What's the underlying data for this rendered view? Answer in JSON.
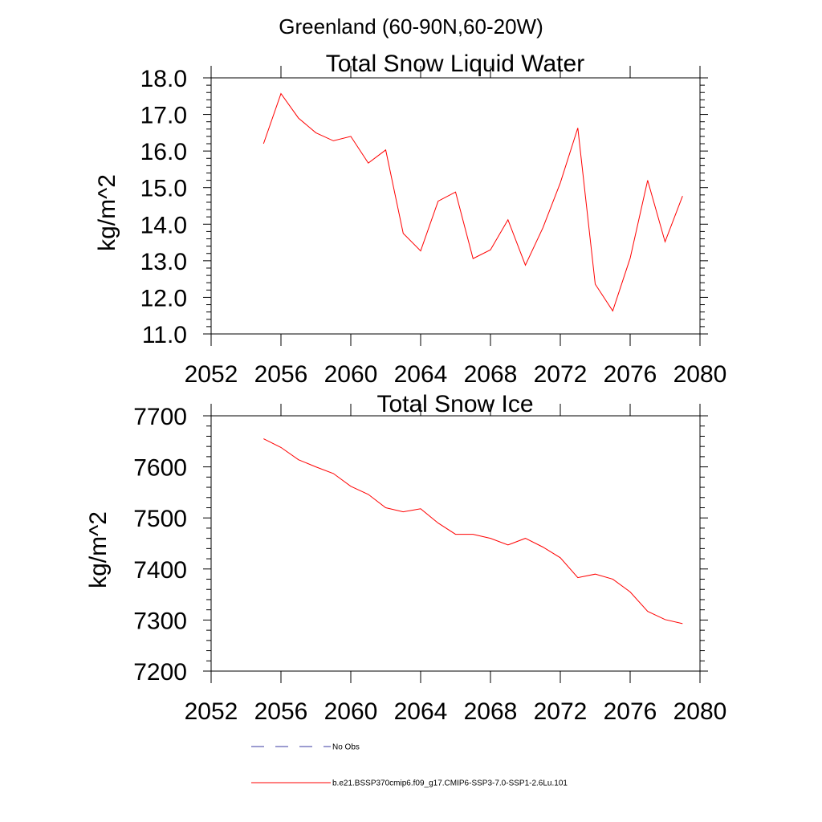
{
  "figure_title": "Greenland (60-90N,60-20W)",
  "colors": {
    "series": "#ff0000",
    "obs": "#3a3aa0",
    "axis": "#000000"
  },
  "legend": [
    {
      "label": "No Obs",
      "style": "dashed",
      "color": "#3a3aa0"
    },
    {
      "label": "b.e21.BSSP370cmip6.f09_g17.CMIP6-SSP3-7.0-SSP1-2.6Lu.101",
      "style": "solid",
      "color": "#ff0000"
    }
  ],
  "chart_data": [
    {
      "type": "line",
      "title": "Total Snow Liquid Water",
      "xlabel": "",
      "ylabel": "kg/m^2",
      "xlim": [
        2052,
        2080
      ],
      "ylim": [
        11.0,
        18.0
      ],
      "xticks": [
        "2052",
        "2056",
        "2060",
        "2064",
        "2068",
        "2072",
        "2076",
        "2080"
      ],
      "yticks": [
        "11.0",
        "12.0",
        "13.0",
        "14.0",
        "15.0",
        "16.0",
        "17.0",
        "18.0"
      ],
      "grid": false,
      "x": [
        2055,
        2056,
        2057,
        2058,
        2059,
        2060,
        2061,
        2062,
        2063,
        2064,
        2065,
        2066,
        2067,
        2068,
        2069,
        2070,
        2071,
        2072,
        2073,
        2074,
        2075,
        2076,
        2077,
        2078,
        2079
      ],
      "series": [
        {
          "values": [
            16.2,
            17.57,
            16.9,
            16.5,
            16.28,
            16.4,
            15.67,
            16.03,
            13.75,
            13.27,
            14.63,
            14.88,
            13.06,
            13.3,
            14.12,
            12.88,
            13.9,
            15.13,
            16.63,
            12.36,
            11.63,
            13.07,
            15.2,
            13.52,
            14.77
          ]
        }
      ]
    },
    {
      "type": "line",
      "title": "Total Snow Ice",
      "xlabel": "",
      "ylabel": "kg/m^2",
      "xlim": [
        2052,
        2080
      ],
      "ylim": [
        7200,
        7700
      ],
      "xticks": [
        "2052",
        "2056",
        "2060",
        "2064",
        "2068",
        "2072",
        "2076",
        "2080"
      ],
      "yticks": [
        "7200",
        "7300",
        "7400",
        "7500",
        "7600",
        "7700"
      ],
      "grid": false,
      "x": [
        2055,
        2056,
        2057,
        2058,
        2059,
        2060,
        2061,
        2062,
        2063,
        2064,
        2065,
        2066,
        2067,
        2068,
        2069,
        2070,
        2071,
        2072,
        2073,
        2074,
        2075,
        2076,
        2077,
        2078,
        2079
      ],
      "series": [
        {
          "values": [
            7655,
            7638,
            7614,
            7600,
            7587,
            7562,
            7546,
            7520,
            7512,
            7518,
            7490,
            7468,
            7468,
            7460,
            7447,
            7460,
            7443,
            7422,
            7383,
            7390,
            7380,
            7355,
            7317,
            7301,
            7293
          ]
        }
      ]
    }
  ]
}
